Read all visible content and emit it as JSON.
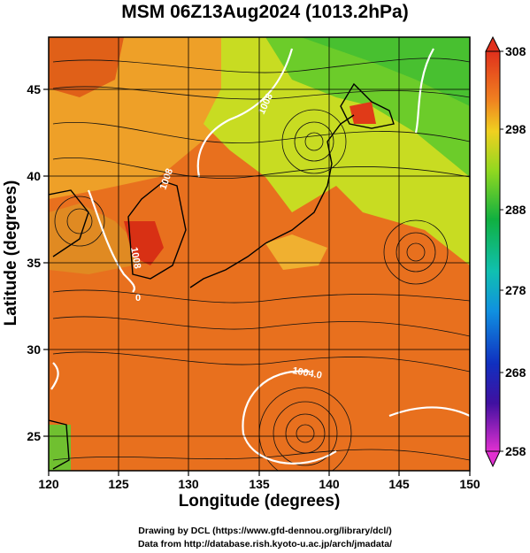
{
  "title": "MSM 06Z13Aug2024 (1013.2hPa)",
  "axes": {
    "xlabel": "Longitude (degrees)",
    "ylabel": "Latitude  (degrees)",
    "xlim": [
      120,
      150
    ],
    "ylim": [
      23,
      48
    ],
    "xticks": [
      "120",
      "125",
      "130",
      "135",
      "140",
      "145",
      "150"
    ],
    "yticks": [
      "25",
      "30",
      "35",
      "40",
      "45"
    ]
  },
  "colorbar": {
    "min": 258,
    "max": 308,
    "ticks": [
      "308",
      "298",
      "288",
      "278",
      "268",
      "258"
    ]
  },
  "contour_labels": [
    "1008",
    "1008",
    "1008",
    "1004.0",
    "0"
  ],
  "credits": {
    "line1": "Drawing by DCL (https://www.gfd-dennou.org/library/dcl/)",
    "line2": "Data from http://database.rish.kyoto-u.ac.jp/arch/jmadata/"
  },
  "colors": {
    "warm": "#e8701e",
    "hot": "#d82010",
    "mild": "#f0a028",
    "cool": "#50c828",
    "yellow": "#d8e020"
  }
}
